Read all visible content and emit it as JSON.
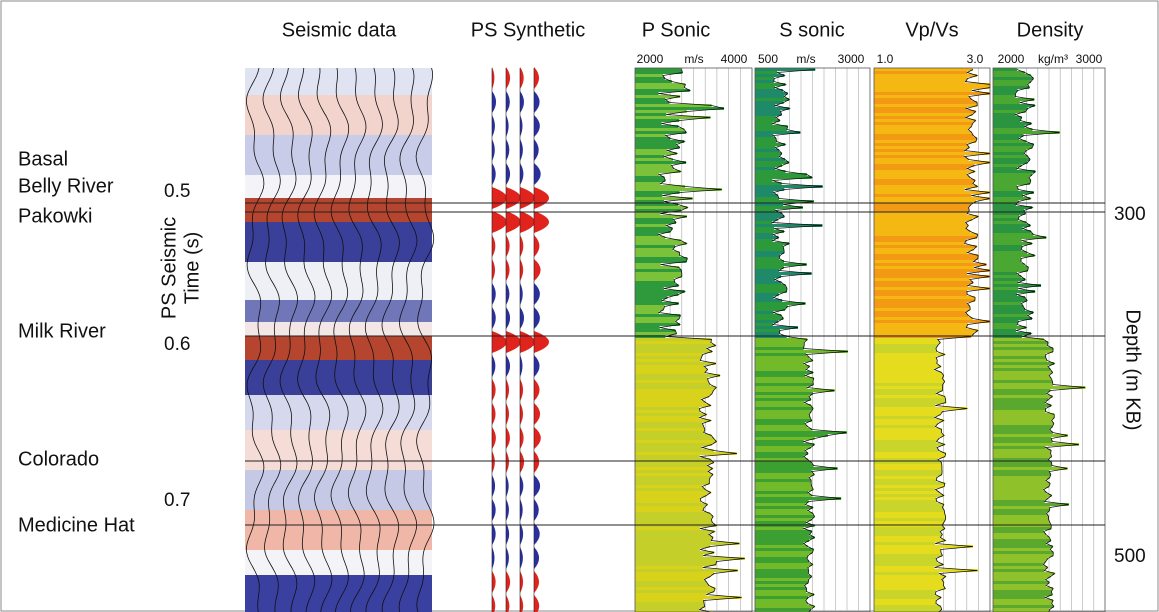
{
  "figure": {
    "headers": [
      "Seismic data",
      "PS Synthetic",
      "P Sonic",
      "S sonic",
      "Vp/Vs",
      "Density"
    ],
    "scales": {
      "p_sonic": [
        "2000",
        "m/s",
        "4000"
      ],
      "s_sonic": [
        "500",
        "m/s",
        "3000"
      ],
      "vp_vs": [
        "1.0",
        "3.0"
      ],
      "density": [
        "2000",
        "kg/m³",
        "3000"
      ]
    },
    "formations": [
      "Basal",
      "Belly River",
      "Pakowki",
      "Milk River",
      "Colorado",
      "Medicine Hat"
    ],
    "time_axis": {
      "label": [
        "PS Seismic",
        "Time (s)"
      ],
      "ticks": [
        "0.5",
        "0.6",
        "0.7"
      ]
    },
    "depth_axis": {
      "label": "Depth (m KB)",
      "ticks": [
        "300",
        "500"
      ]
    }
  }
}
